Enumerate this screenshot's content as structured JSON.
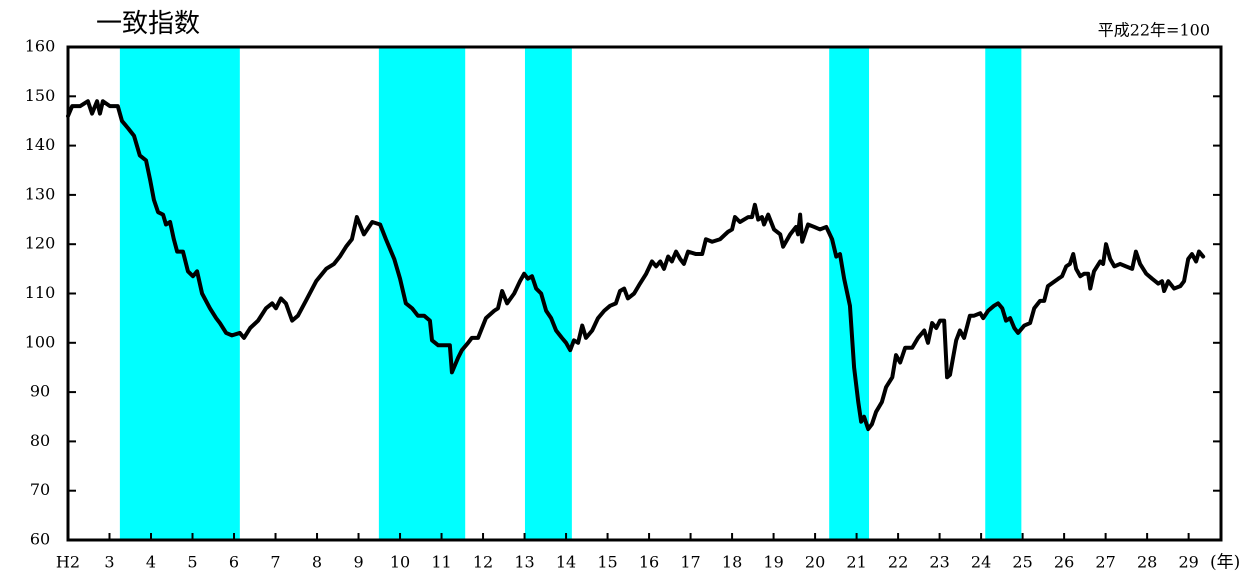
{
  "chart_data": {
    "type": "line",
    "title": "一致指数",
    "note": "平成22年=100",
    "x_unit": "(年)",
    "xlim": [
      2,
      29.78
    ],
    "ylim": [
      60,
      160
    ],
    "yticks": [
      60,
      70,
      80,
      90,
      100,
      110,
      120,
      130,
      140,
      150,
      160
    ],
    "xticks": [
      {
        "value": 2,
        "label": "H2"
      },
      3,
      4,
      5,
      6,
      7,
      8,
      9,
      10,
      11,
      12,
      13,
      14,
      15,
      16,
      17,
      18,
      19,
      20,
      21,
      22,
      23,
      24,
      25,
      26,
      27,
      28,
      29
    ],
    "shade_color": "#00ffff",
    "shaded_periods": [
      {
        "start": 3.25,
        "end": 6.14
      },
      {
        "start": 9.49,
        "end": 11.57
      },
      {
        "start": 13.01,
        "end": 14.14
      },
      {
        "start": 20.34,
        "end": 21.3
      },
      {
        "start": 24.1,
        "end": 24.97
      }
    ],
    "x": [
      2.0,
      2.1,
      2.29,
      2.48,
      2.58,
      2.7,
      2.77,
      2.84,
      3.01,
      3.2,
      3.3,
      3.45,
      3.59,
      3.73,
      3.88,
      3.98,
      4.07,
      4.17,
      4.29,
      4.36,
      4.46,
      4.55,
      4.63,
      4.77,
      4.89,
      5.01,
      5.11,
      5.23,
      5.42,
      5.57,
      5.66,
      5.81,
      5.95,
      6.14,
      6.24,
      6.39,
      6.58,
      6.77,
      6.92,
      7.01,
      7.13,
      7.25,
      7.4,
      7.54,
      7.73,
      7.98,
      8.22,
      8.41,
      8.55,
      8.7,
      8.84,
      8.96,
      9.13,
      9.33,
      9.52,
      9.66,
      9.86,
      10.0,
      10.14,
      10.29,
      10.43,
      10.58,
      10.72,
      10.77,
      10.92,
      11.08,
      11.2,
      11.25,
      11.4,
      11.49,
      11.64,
      11.73,
      11.88,
      12.07,
      12.27,
      12.36,
      12.46,
      12.58,
      12.75,
      12.89,
      12.99,
      13.08,
      13.18,
      13.28,
      13.4,
      13.52,
      13.64,
      13.76,
      13.9,
      14.0,
      14.1,
      14.19,
      14.29,
      14.39,
      14.48,
      14.63,
      14.77,
      14.92,
      15.06,
      15.2,
      15.3,
      15.4,
      15.49,
      15.64,
      15.78,
      15.93,
      16.07,
      16.17,
      16.27,
      16.36,
      16.46,
      16.55,
      16.65,
      16.75,
      16.84,
      16.94,
      17.13,
      17.28,
      17.37,
      17.52,
      17.71,
      17.9,
      18.0,
      18.07,
      18.19,
      18.39,
      18.48,
      18.55,
      18.63,
      18.72,
      18.77,
      18.87,
      19.01,
      19.16,
      19.23,
      19.4,
      19.54,
      19.59,
      19.64,
      19.69,
      19.83,
      19.98,
      20.12,
      20.27,
      20.41,
      20.51,
      20.6,
      20.7,
      20.84,
      20.94,
      21.04,
      21.11,
      21.18,
      21.28,
      21.37,
      21.47,
      21.61,
      21.71,
      21.86,
      21.95,
      22.05,
      22.17,
      22.34,
      22.48,
      22.63,
      22.72,
      22.82,
      22.92,
      23.01,
      23.11,
      23.18,
      23.25,
      23.4,
      23.49,
      23.59,
      23.73,
      23.83,
      23.98,
      24.05,
      24.17,
      24.31,
      24.41,
      24.51,
      24.6,
      24.7,
      24.8,
      24.89,
      25.04,
      25.18,
      25.28,
      25.42,
      25.52,
      25.61,
      25.86,
      25.95,
      26.05,
      26.14,
      26.22,
      26.29,
      26.39,
      26.48,
      26.58,
      26.63,
      26.72,
      26.87,
      26.94,
      27.01,
      27.11,
      27.21,
      27.35,
      27.49,
      27.64,
      27.73,
      27.83,
      27.98,
      28.12,
      28.27,
      28.36,
      28.41,
      28.51,
      28.65,
      28.8,
      28.89,
      28.99,
      29.08,
      29.18,
      29.25,
      29.35
    ],
    "series": [
      {
        "name": "一致指数",
        "color": "#000000",
        "values": [
          146,
          148,
          148,
          149,
          146.5,
          149,
          146.5,
          149,
          148,
          148,
          145,
          143.5,
          142,
          138,
          137,
          133,
          129,
          126.5,
          126,
          124,
          124.5,
          121,
          118.5,
          118.5,
          114.5,
          113.5,
          114.5,
          110,
          107,
          105,
          104,
          102,
          101.5,
          102,
          101,
          103,
          104.5,
          107,
          108,
          107,
          109,
          108,
          104.5,
          105.5,
          108.5,
          112.5,
          115,
          116,
          117.5,
          119.5,
          121,
          125.5,
          122,
          124.5,
          124,
          121,
          117,
          113,
          108,
          107,
          105.5,
          105.5,
          104.5,
          100.5,
          99.5,
          99.5,
          99.5,
          94,
          97,
          98.5,
          100,
          101,
          101,
          105,
          106.5,
          107,
          110.5,
          108,
          110,
          112.5,
          114,
          113,
          113.5,
          111,
          110,
          106.5,
          105,
          102.5,
          101,
          100,
          98.5,
          100.5,
          100,
          103.5,
          101,
          102.5,
          105,
          106.5,
          107.5,
          108,
          110.5,
          111,
          109,
          110,
          112,
          114,
          116.5,
          115.5,
          116.5,
          115,
          117.5,
          116.5,
          118.5,
          117,
          116,
          118.5,
          118,
          118,
          121,
          120.5,
          121,
          122.5,
          123,
          125.5,
          124.5,
          125.5,
          125.5,
          128,
          125,
          125.5,
          124,
          126,
          123,
          122,
          119.5,
          122,
          123.5,
          122,
          126,
          120.5,
          124,
          123.5,
          123,
          123.5,
          121,
          117.5,
          118,
          113,
          107.5,
          95,
          88,
          84,
          85,
          82.5,
          83.5,
          86,
          88,
          91,
          93,
          97.5,
          96,
          99,
          99,
          101,
          102.5,
          100,
          104,
          103,
          104.5,
          104.5,
          93,
          93.5,
          100.5,
          102.5,
          101,
          105.5,
          105.5,
          106,
          105,
          106.5,
          107.5,
          108,
          107,
          104.5,
          105,
          103,
          102,
          103.5,
          104,
          107,
          108.5,
          108.5,
          111.5,
          113,
          113.5,
          115.5,
          116,
          118,
          115,
          113.5,
          114,
          114,
          111,
          114.5,
          116.5,
          116,
          120,
          117,
          115.5,
          116,
          115.5,
          115,
          118.5,
          116,
          114,
          113,
          112,
          112.5,
          110.5,
          112.5,
          111,
          111.5,
          112.5,
          117,
          118,
          116.5,
          118.5,
          117.5
        ]
      }
    ]
  }
}
